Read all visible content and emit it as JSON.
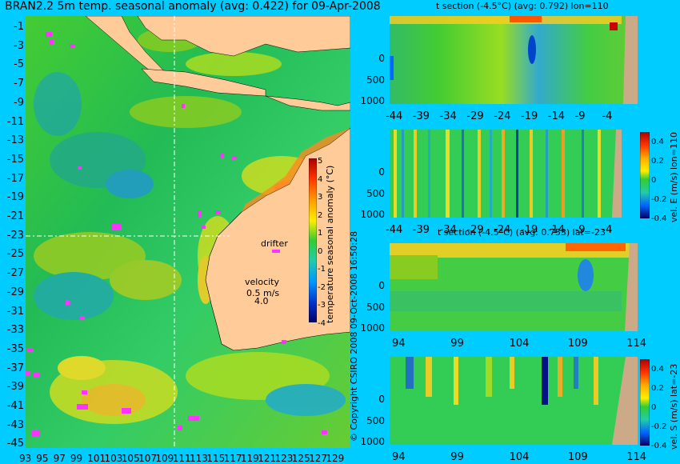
{
  "map": {
    "title": "BRAN2.2 5m temp. seasonal anomaly (avg: 0.422) for 09-Apr-2008",
    "lat_ticks": [
      "-1",
      "-3",
      "-5",
      "-7",
      "-9",
      "-11",
      "-13",
      "-15",
      "-17",
      "-19",
      "-21",
      "-23",
      "-25",
      "-27",
      "-29",
      "-31",
      "-33",
      "-35",
      "-37",
      "-39",
      "-41",
      "-43",
      "-45"
    ],
    "lon_ticks": [
      "93",
      "95",
      "97",
      "99",
      "101",
      "103",
      "105",
      "107",
      "109",
      "111",
      "113",
      "115",
      "117",
      "119",
      "121",
      "123",
      "125",
      "127",
      "129"
    ],
    "colorbar": {
      "label": "temperature seasonal anomaly (°C)",
      "ticks": [
        "5",
        "4",
        "3",
        "2",
        "1",
        "0",
        "-1",
        "-2",
        "-3",
        "-4"
      ]
    },
    "drifter_label": "drifter",
    "velocity_label": "velocity",
    "velocity_scale": "0.5 m/s",
    "velocity_scale2": "4.0",
    "copyright": "© Copyright CSIRO 2008   09-Oct-2008 16:50:28"
  },
  "panels": [
    {
      "title": "t section (-4.5°C) (avg: 0.792) lon=110",
      "y_ticks": [
        "0",
        "500",
        "1000"
      ],
      "x_ticks": [
        "-44",
        "-39",
        "-34",
        "-29",
        "-24",
        "-19",
        "-14",
        "-9",
        "-4"
      ]
    },
    {
      "title": "",
      "y_ticks": [
        "0",
        "500",
        "1000"
      ],
      "x_ticks": [
        "-44",
        "-39",
        "-34",
        "-29",
        "-24",
        "-19",
        "-14",
        "-9",
        "-4"
      ],
      "colorbar_label": "vel. E (m/s) lon=110",
      "colorbar_ticks": [
        "0.4",
        "0.2",
        "0",
        "-0.2",
        "-0.4"
      ]
    },
    {
      "title": "t section (-4.5°C) (avg: 0.753) lat=-23",
      "y_ticks": [
        "0",
        "500",
        "1000"
      ],
      "x_ticks": [
        "94",
        "99",
        "104",
        "109",
        "114"
      ]
    },
    {
      "title": "",
      "y_ticks": [
        "0",
        "500",
        "1000"
      ],
      "x_ticks": [
        "94",
        "99",
        "104",
        "109",
        "114"
      ],
      "colorbar_label": "vel. S (m/s) lat=-23",
      "colorbar_ticks": [
        "0.4",
        "0.2",
        "0",
        "-0.2",
        "-0.4"
      ]
    }
  ],
  "colors": {
    "background": "#00ccff",
    "ocean": "#33cc44",
    "land_map": "#ffcc99",
    "land_section": "#ccaa88",
    "drifter": "#ff33ff"
  }
}
